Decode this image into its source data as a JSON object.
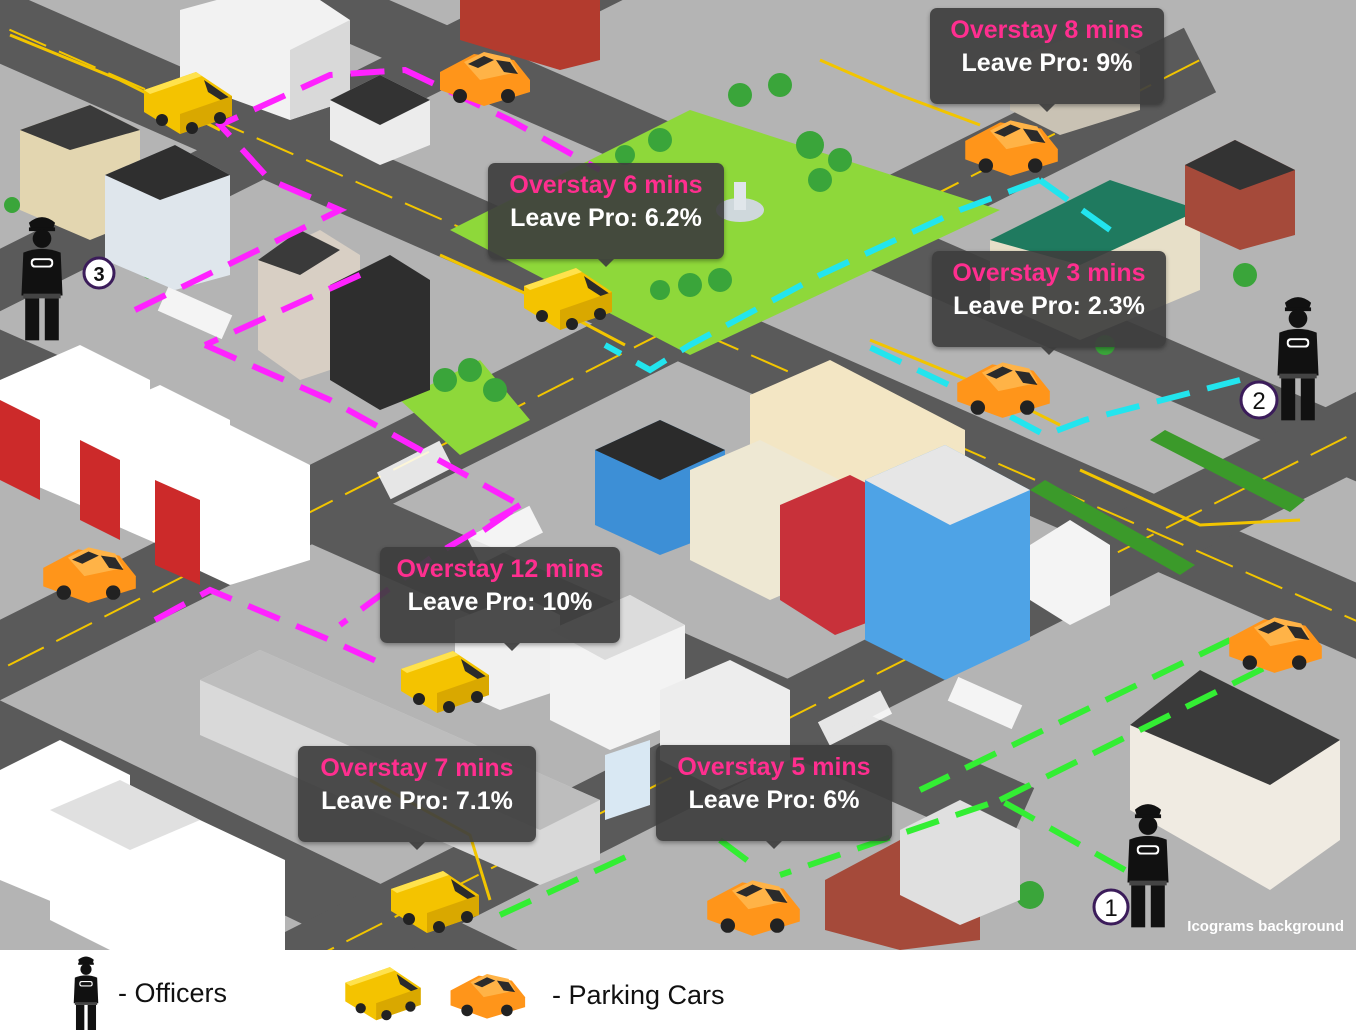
{
  "tooltips": [
    {
      "overstay": "Overstay 8 mins",
      "leave": "Leave Pro: 9%"
    },
    {
      "overstay": "Overstay 6 mins",
      "leave": "Leave Pro: 6.2%"
    },
    {
      "overstay": "Overstay 3 mins",
      "leave": "Leave Pro: 2.3%"
    },
    {
      "overstay": "Overstay 12 mins",
      "leave": "Leave Pro: 10%"
    },
    {
      "overstay": "Overstay 7 mins",
      "leave": "Leave Pro: 7.1%"
    },
    {
      "overstay": "Overstay 5 mins",
      "leave": "Leave Pro: 6%"
    }
  ],
  "officers": [
    "1",
    "2",
    "3"
  ],
  "credit": "Icograms background",
  "legend": {
    "officers": "- Officers",
    "cars": "- Parking Cars"
  },
  "colors": {
    "route_officer_1": "#33ee33",
    "route_officer_2": "#22e5ee",
    "route_officer_3": "#ff22ff",
    "overstay_text": "#ff2e8f",
    "tooltip_bg": "#3e3e3e",
    "van": "#ffcc00",
    "hatchback": "#ff9a1a",
    "road": "#595959",
    "ground": "#b3b3b3",
    "park": "#8ed83a"
  }
}
